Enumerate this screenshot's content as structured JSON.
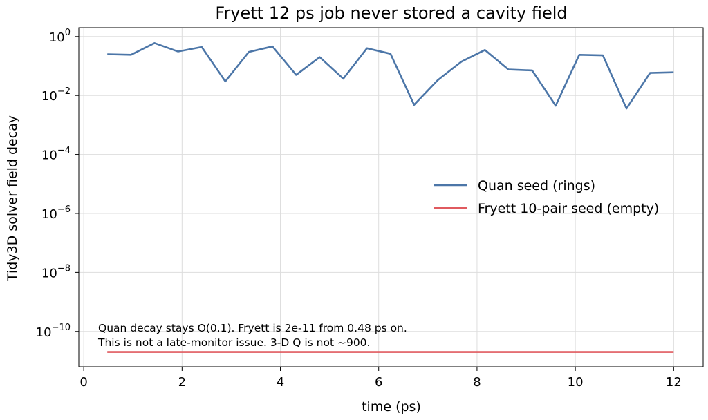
{
  "chart_data": {
    "type": "line",
    "title": "Fryett 12 ps job never stored a cavity field",
    "xlabel": "time (ps)",
    "ylabel": "Tidy3D solver field decay",
    "yscale": "log",
    "xlim": [
      -0.1,
      12.6
    ],
    "ylim_exp": [
      -11.2,
      0.3
    ],
    "xticks": [
      {
        "v": 0,
        "label": "0"
      },
      {
        "v": 2,
        "label": "2"
      },
      {
        "v": 4,
        "label": "4"
      },
      {
        "v": 6,
        "label": "6"
      },
      {
        "v": 8,
        "label": "8"
      },
      {
        "v": 10,
        "label": "10"
      },
      {
        "v": 12,
        "label": "12"
      }
    ],
    "yticks": [
      {
        "exp": 0,
        "base": "10",
        "sup": "0"
      },
      {
        "exp": -2,
        "base": "10",
        "sup": "−2"
      },
      {
        "exp": -4,
        "base": "10",
        "sup": "−4"
      },
      {
        "exp": -6,
        "base": "10",
        "sup": "−6"
      },
      {
        "exp": -8,
        "base": "10",
        "sup": "−8"
      },
      {
        "exp": -10,
        "base": "10",
        "sup": "−10"
      }
    ],
    "grid": true,
    "legend_position": "center-right",
    "series": [
      {
        "name": "Quan seed (rings)",
        "color": "#4c76a8",
        "x": [
          0.48,
          0.96,
          1.44,
          1.92,
          2.4,
          2.88,
          3.36,
          3.84,
          4.32,
          4.8,
          5.28,
          5.76,
          6.24,
          6.72,
          7.2,
          7.68,
          8.16,
          8.64,
          9.12,
          9.6,
          10.08,
          10.56,
          11.04,
          11.52,
          12.0
        ],
        "y": [
          0.25,
          0.24,
          0.6,
          0.31,
          0.44,
          0.03,
          0.3,
          0.46,
          0.05,
          0.2,
          0.037,
          0.4,
          0.26,
          0.0048,
          0.033,
          0.14,
          0.35,
          0.076,
          0.071,
          0.0045,
          0.24,
          0.23,
          0.0036,
          0.058,
          0.061
        ]
      },
      {
        "name": "Fryett 10-pair seed (empty)",
        "color": "#e05a5f",
        "x": [
          0.48,
          12.0
        ],
        "y": [
          2e-11,
          2e-11
        ]
      }
    ],
    "annotations": [
      "Quan decay stays O(0.1). Fryett is 2e-11 from 0.48 ps on.",
      "This is not a late-monitor issue. 3-D Q is not ~900."
    ]
  }
}
